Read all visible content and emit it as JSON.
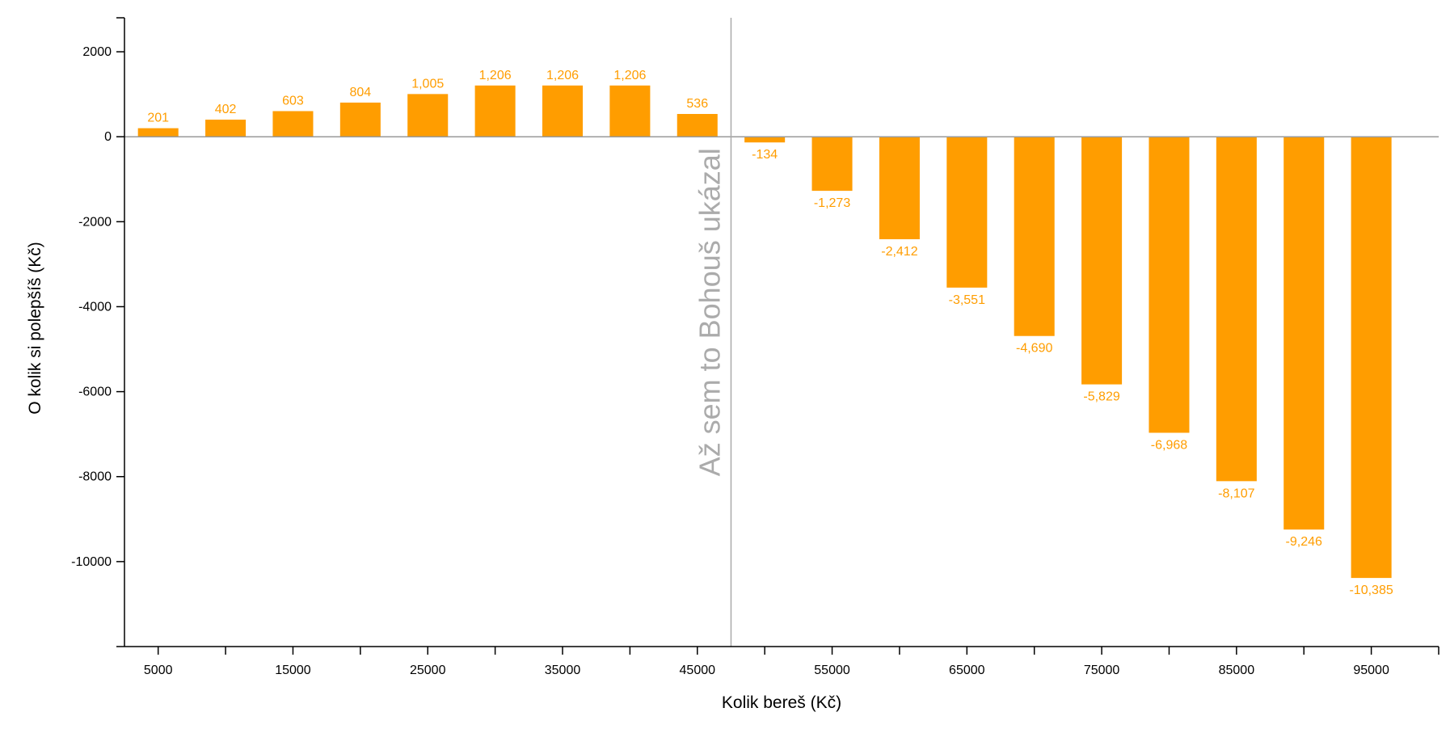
{
  "chart_data": {
    "type": "bar",
    "xlabel": "Kolik bereš (Kč)",
    "ylabel": "O kolik si polepšíš (Kč)",
    "ylim": [
      -12000,
      2800
    ],
    "y_ticks": [
      2000,
      0,
      -2000,
      -4000,
      -6000,
      -8000,
      -10000
    ],
    "x_tick_labels": [
      "5000",
      "15000",
      "25000",
      "35000",
      "45000",
      "55000",
      "65000",
      "75000",
      "85000",
      "95000"
    ],
    "categories": [
      5000,
      10000,
      15000,
      20000,
      25000,
      30000,
      35000,
      40000,
      45000,
      50000,
      55000,
      60000,
      65000,
      70000,
      75000,
      80000,
      85000,
      90000,
      95000
    ],
    "values": [
      201,
      402,
      603,
      804,
      1005,
      1206,
      1206,
      1206,
      536,
      -134,
      -1273,
      -2412,
      -3551,
      -4690,
      -5829,
      -6968,
      -8107,
      -9246,
      -10385
    ],
    "value_labels": [
      "201",
      "402",
      "603",
      "804",
      "1,005",
      "1,206",
      "1,206",
      "1,206",
      "536",
      "-134",
      "-1,273",
      "-2,412",
      "-3,551",
      "-4,690",
      "-5,829",
      "-6,968",
      "-8,107",
      "-9,246",
      "-10,385"
    ],
    "bar_color": "#ff9d00",
    "annotation": {
      "text": "Až sem to Bohouš ukázal",
      "at_x": 47500,
      "color": "#ababab"
    },
    "grid": false,
    "legend": "none"
  }
}
